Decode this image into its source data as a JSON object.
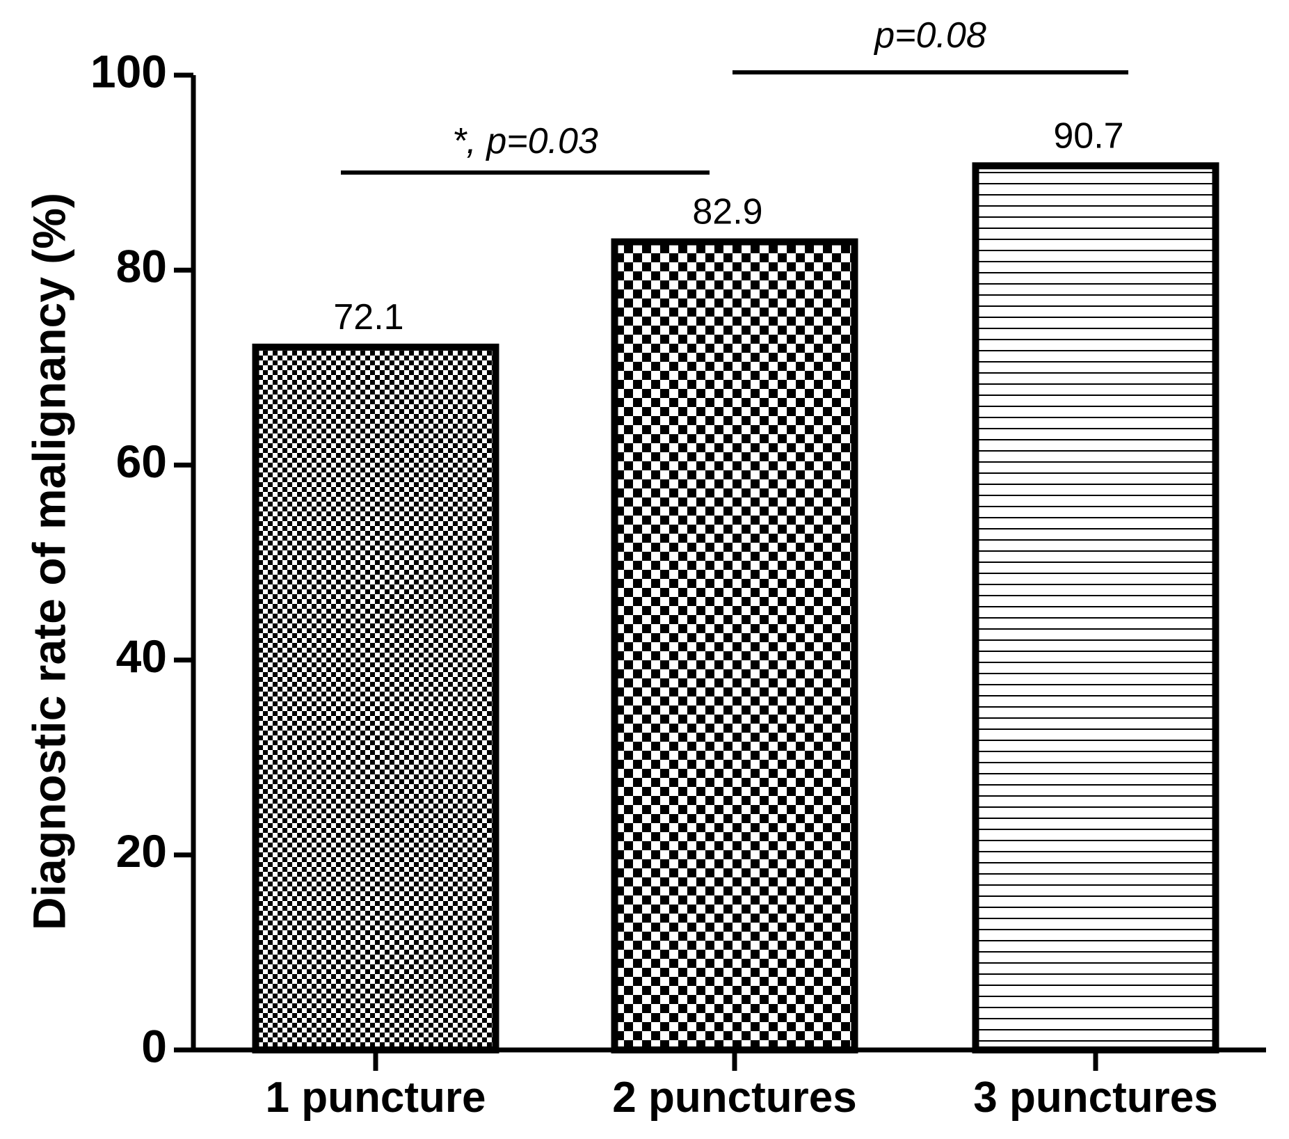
{
  "chart_data": {
    "type": "bar",
    "title": "",
    "xlabel": "",
    "ylabel": "Diagnostic rate of malignancy (%)",
    "ylim": [
      0,
      100
    ],
    "yticks": [
      0,
      20,
      40,
      60,
      80,
      100
    ],
    "categories": [
      "1 puncture",
      "2 punctures",
      "3 punctures"
    ],
    "values": [
      72.1,
      82.9,
      90.7
    ],
    "data_labels": [
      "72.1",
      "82.9",
      "90.7"
    ],
    "fill_patterns": [
      "fine-checkerboard",
      "coarse-checkerboard",
      "horizontal-lines"
    ],
    "grid": false,
    "legend": "none",
    "annotations": [
      {
        "from": "1 puncture",
        "to": "2 punctures",
        "text": "*, p=0.03"
      },
      {
        "from": "2 punctures",
        "to": "3 punctures",
        "text": "p=0.08"
      }
    ]
  },
  "colors": {
    "bar_stroke": "#000000",
    "background": "#ffffff"
  }
}
